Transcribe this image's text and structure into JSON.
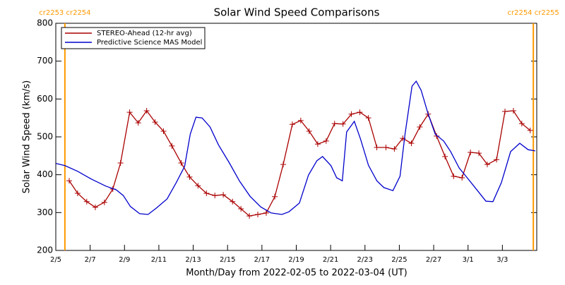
{
  "chart_data": {
    "type": "line",
    "title": "Solar Wind Speed Comparisons",
    "x_label": "Month/Day from 2022-02-05 to 2022-03-04 (UT)",
    "y_label": "Solar Wind Speed (km/s)",
    "xlim": [
      0,
      28
    ],
    "ylim": [
      200,
      800
    ],
    "yticks": [
      200,
      300,
      400,
      500,
      600,
      700,
      800
    ],
    "xticks": [
      {
        "value": 0,
        "label": "2/5"
      },
      {
        "value": 2,
        "label": "2/7"
      },
      {
        "value": 4,
        "label": "2/9"
      },
      {
        "value": 6,
        "label": "2/11"
      },
      {
        "value": 8,
        "label": "2/13"
      },
      {
        "value": 10,
        "label": "2/15"
      },
      {
        "value": 12,
        "label": "2/17"
      },
      {
        "value": 14,
        "label": "2/19"
      },
      {
        "value": 16,
        "label": "2/21"
      },
      {
        "value": 18,
        "label": "2/23"
      },
      {
        "value": 20,
        "label": "2/25"
      },
      {
        "value": 22,
        "label": "2/27"
      },
      {
        "value": 24,
        "label": "3/1"
      },
      {
        "value": 26,
        "label": "3/3"
      }
    ],
    "boundaries": [
      {
        "x": 0.53,
        "label": "cr2253 cr2254",
        "color": "#ff9900"
      },
      {
        "x": 27.8,
        "label": "cr2254 cr2255",
        "color": "#ff9900"
      }
    ],
    "legend": "upper left",
    "series": [
      {
        "name": "STEREO-Ahead (12-hr avg)",
        "color": "#aa0000",
        "marker": "+",
        "x": [
          0.78,
          1.27,
          1.8,
          2.3,
          2.83,
          3.32,
          3.77,
          4.3,
          4.8,
          5.29,
          5.78,
          6.27,
          6.76,
          7.3,
          7.79,
          8.28,
          8.77,
          9.26,
          9.75,
          10.29,
          10.78,
          11.27,
          11.76,
          12.25,
          12.75,
          13.24,
          13.77,
          14.26,
          14.75,
          15.25,
          15.74,
          16.23,
          16.72,
          17.21,
          17.7,
          18.2,
          18.69,
          19.22,
          19.71,
          20.2,
          20.7,
          21.19,
          21.68,
          22.17,
          22.66,
          23.16,
          23.65,
          24.14,
          24.63,
          25.12,
          25.66,
          26.15,
          26.64,
          27.13,
          27.62
        ],
        "values": [
          384,
          351,
          329,
          314,
          327,
          362,
          431,
          565,
          537,
          569,
          539,
          515,
          476,
          431,
          394,
          371,
          351,
          345,
          347,
          329,
          310,
          291,
          295,
          299,
          342,
          427,
          533,
          543,
          515,
          481,
          489,
          535,
          534,
          560,
          565,
          550,
          472,
          472,
          468,
          496,
          483,
          526,
          560,
          502,
          448,
          396,
          392,
          459,
          457,
          427,
          440,
          567,
          569,
          535,
          517
        ]
      },
      {
        "name": "Predictive Science MAS Model",
        "color": "#0000cc",
        "x": [
          0,
          0.53,
          1.27,
          2.09,
          2.91,
          3.52,
          3.93,
          4.34,
          4.88,
          5.37,
          5.86,
          6.48,
          7.01,
          7.5,
          7.83,
          8.16,
          8.52,
          8.98,
          9.47,
          10.08,
          10.7,
          11.31,
          11.93,
          12.54,
          13.16,
          13.57,
          14.18,
          14.71,
          15.2,
          15.53,
          16.02,
          16.35,
          16.68,
          16.93,
          17.38,
          17.75,
          18.2,
          18.69,
          19.1,
          19.63,
          20.04,
          20.33,
          20.74,
          20.98,
          21.27,
          21.68,
          22.09,
          22.58,
          22.99,
          23.48,
          24.02,
          24.55,
          25.04,
          25.45,
          25.94,
          26.48,
          27.01,
          27.5,
          27.91
        ],
        "values": [
          430,
          424,
          409,
          388,
          370,
          360,
          345,
          316,
          297,
          295,
          312,
          336,
          379,
          422,
          507,
          552,
          550,
          526,
          479,
          433,
          383,
          343,
          315,
          299,
          295,
          302,
          325,
          399,
          437,
          448,
          424,
          392,
          384,
          513,
          541,
          493,
          425,
          384,
          366,
          358,
          396,
          507,
          634,
          647,
          623,
          560,
          507,
          489,
          461,
          418,
          388,
          358,
          330,
          329,
          379,
          461,
          483,
          466,
          463
        ]
      }
    ]
  }
}
